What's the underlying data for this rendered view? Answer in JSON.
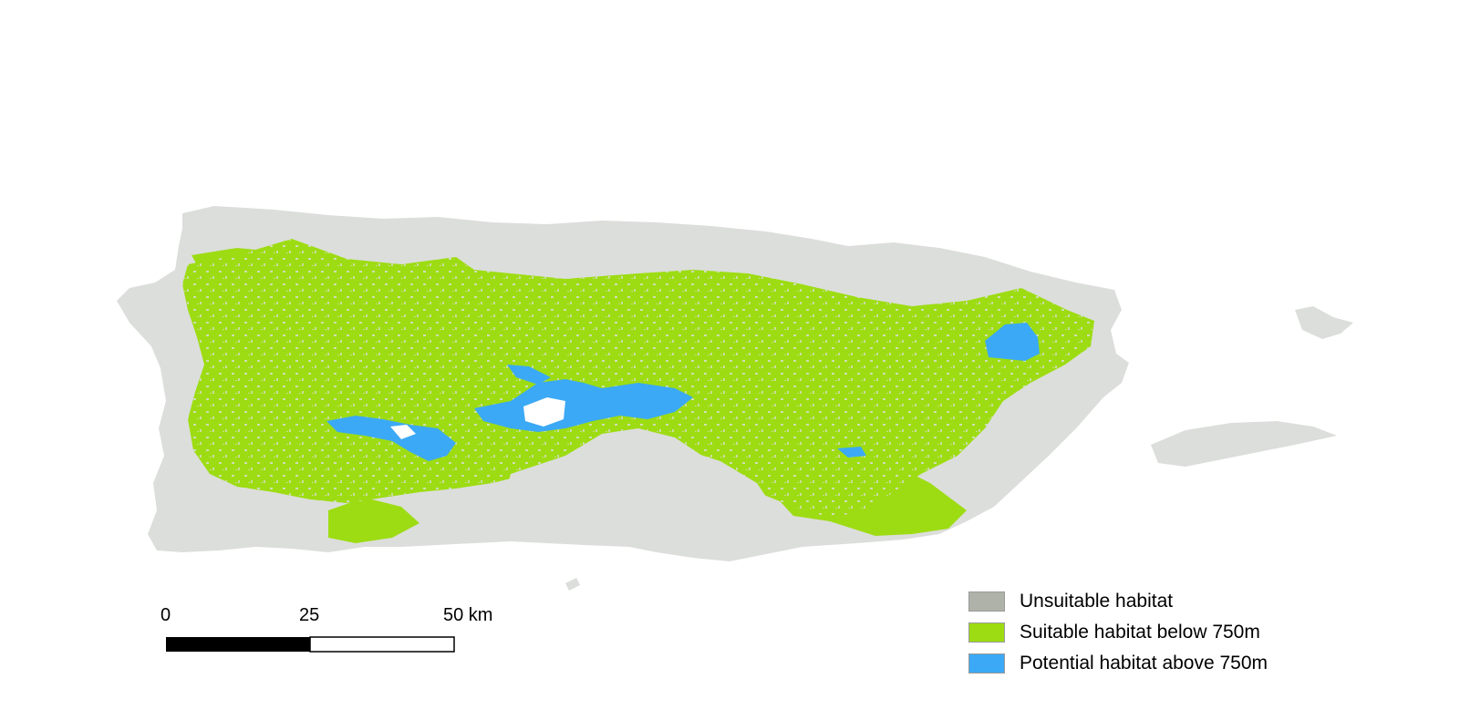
{
  "map": {
    "colors": {
      "background": "#ffffff",
      "unsuitable": "#dcdedb",
      "suitable": "#9ddc13",
      "potential": "#3ba9f5",
      "gap": "#ffffff"
    }
  },
  "scale": {
    "ticks": [
      "0",
      "25",
      "50 km"
    ],
    "unit": "km"
  },
  "legend": {
    "items": [
      {
        "label": "Unsuitable habitat",
        "color": "#afb2a9"
      },
      {
        "label": "Suitable habitat below 750m",
        "color": "#9ddc13"
      },
      {
        "label": "Potential habitat above 750m",
        "color": "#3ba9f5"
      }
    ]
  }
}
